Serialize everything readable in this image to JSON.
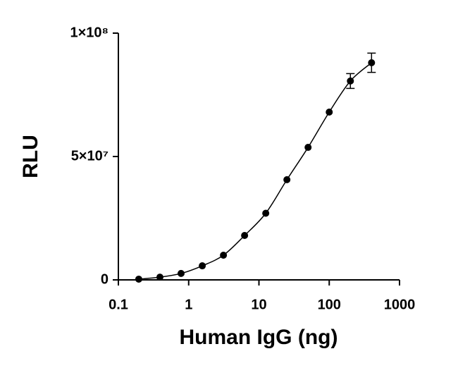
{
  "chart_data": {
    "type": "scatter",
    "x_label": "Human IgG (ng)",
    "y_label": "RLU",
    "x_scale": "log",
    "color": "#000000",
    "x": [
      0.195,
      0.39,
      0.78,
      1.5625,
      3.125,
      6.25,
      12.5,
      25,
      50,
      100,
      200,
      400
    ],
    "values": [
      300000,
      1100000,
      2600000,
      5700000,
      10000000,
      18000000,
      27000000,
      40600000,
      53700000,
      68000000,
      80600000,
      88000000
    ],
    "errors": [
      0,
      0,
      0,
      0,
      0,
      0,
      0,
      0,
      0,
      0,
      3000000,
      3900000
    ],
    "xlim": [
      0.1,
      1000
    ],
    "xticks": [
      0.1,
      1,
      10,
      100,
      1000
    ],
    "ylim": [
      0,
      100000000
    ],
    "yticks": [
      0,
      {
        "value": 50000000,
        "label": "5×10⁷"
      },
      {
        "value": 100000000,
        "label": "1×10⁸"
      }
    ]
  }
}
